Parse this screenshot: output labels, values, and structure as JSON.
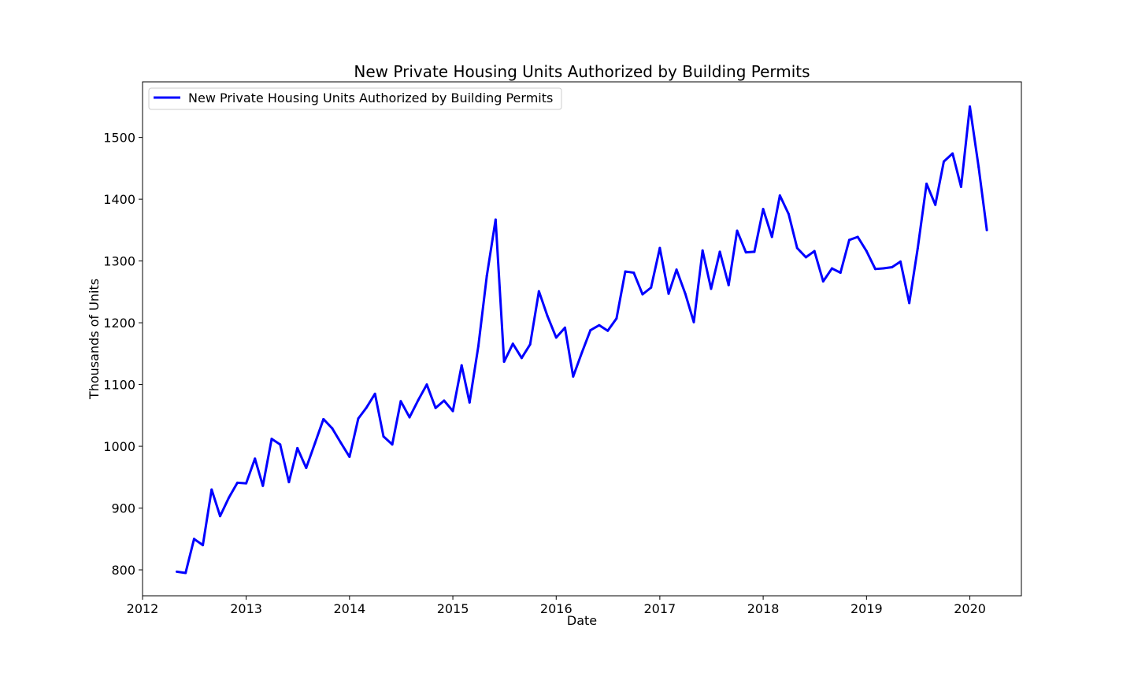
{
  "chart_data": {
    "type": "line",
    "title": "New Private Housing Units Authorized by Building Permits",
    "xlabel": "Date",
    "ylabel": "Thousands of Units",
    "xlim": [
      "2012-01-01",
      "2020-07-01"
    ],
    "ylim": [
      758,
      1590
    ],
    "x_ticks": [
      {
        "date": "2012-01-01",
        "label": "2012"
      },
      {
        "date": "2013-01-01",
        "label": "2013"
      },
      {
        "date": "2014-01-01",
        "label": "2014"
      },
      {
        "date": "2015-01-01",
        "label": "2015"
      },
      {
        "date": "2016-01-01",
        "label": "2016"
      },
      {
        "date": "2017-01-01",
        "label": "2017"
      },
      {
        "date": "2018-01-01",
        "label": "2018"
      },
      {
        "date": "2019-01-01",
        "label": "2019"
      },
      {
        "date": "2020-01-01",
        "label": "2020"
      }
    ],
    "y_ticks": [
      800,
      900,
      1000,
      1100,
      1200,
      1300,
      1400,
      1500
    ],
    "grid": false,
    "legend": {
      "placement": "top-left"
    },
    "series": [
      {
        "name": "New Private Housing Units Authorized by Building Permits",
        "color": "#0000ff",
        "x": [
          "2012-05-01",
          "2012-06-01",
          "2012-07-01",
          "2012-08-01",
          "2012-09-01",
          "2012-10-01",
          "2012-11-01",
          "2012-12-01",
          "2013-01-01",
          "2013-02-01",
          "2013-03-01",
          "2013-04-01",
          "2013-05-01",
          "2013-06-01",
          "2013-07-01",
          "2013-08-01",
          "2013-09-01",
          "2013-10-01",
          "2013-11-01",
          "2013-12-01",
          "2014-01-01",
          "2014-02-01",
          "2014-03-01",
          "2014-04-01",
          "2014-05-01",
          "2014-06-01",
          "2014-07-01",
          "2014-08-01",
          "2014-09-01",
          "2014-10-01",
          "2014-11-01",
          "2014-12-01",
          "2015-01-01",
          "2015-02-01",
          "2015-03-01",
          "2015-04-01",
          "2015-05-01",
          "2015-06-01",
          "2015-07-01",
          "2015-08-01",
          "2015-09-01",
          "2015-10-01",
          "2015-11-01",
          "2015-12-01",
          "2016-01-01",
          "2016-02-01",
          "2016-03-01",
          "2016-04-01",
          "2016-05-01",
          "2016-06-01",
          "2016-07-01",
          "2016-08-01",
          "2016-09-01",
          "2016-10-01",
          "2016-11-01",
          "2016-12-01",
          "2017-01-01",
          "2017-02-01",
          "2017-03-01",
          "2017-04-01",
          "2017-05-01",
          "2017-06-01",
          "2017-07-01",
          "2017-08-01",
          "2017-09-01",
          "2017-10-01",
          "2017-11-01",
          "2017-12-01",
          "2018-01-01",
          "2018-02-01",
          "2018-03-01",
          "2018-04-01",
          "2018-05-01",
          "2018-06-01",
          "2018-07-01",
          "2018-08-01",
          "2018-09-01",
          "2018-10-01",
          "2018-11-01",
          "2018-12-01",
          "2019-01-01",
          "2019-02-01",
          "2019-03-01",
          "2019-04-01",
          "2019-05-01",
          "2019-06-01",
          "2019-07-01",
          "2019-08-01",
          "2019-09-01",
          "2019-10-01",
          "2019-11-01",
          "2019-12-01",
          "2020-01-01",
          "2020-02-01",
          "2020-03-01"
        ],
        "y": [
          797,
          795,
          850,
          840,
          930,
          887,
          917,
          941,
          940,
          980,
          936,
          1012,
          1003,
          942,
          997,
          965,
          1005,
          1044,
          1029,
          1006,
          983,
          1045,
          1062,
          1085,
          1016,
          1003,
          1073,
          1047,
          1075,
          1100,
          1062,
          1074,
          1057,
          1131,
          1071,
          1162,
          1276,
          1367,
          1137,
          1166,
          1143,
          1165,
          1251,
          1211,
          1176,
          1192,
          1113,
          1152,
          1188,
          1196,
          1187,
          1207,
          1283,
          1281,
          1246,
          1257,
          1321,
          1247,
          1286,
          1247,
          1201,
          1317,
          1255,
          1315,
          1261,
          1349,
          1314,
          1315,
          1384,
          1339,
          1406,
          1376,
          1321,
          1306,
          1316,
          1267,
          1288,
          1281,
          1334,
          1339,
          1316,
          1287,
          1288,
          1290,
          1299,
          1232,
          1321,
          1425,
          1391,
          1461,
          1474,
          1420,
          1550,
          1452,
          1350
        ]
      }
    ]
  }
}
